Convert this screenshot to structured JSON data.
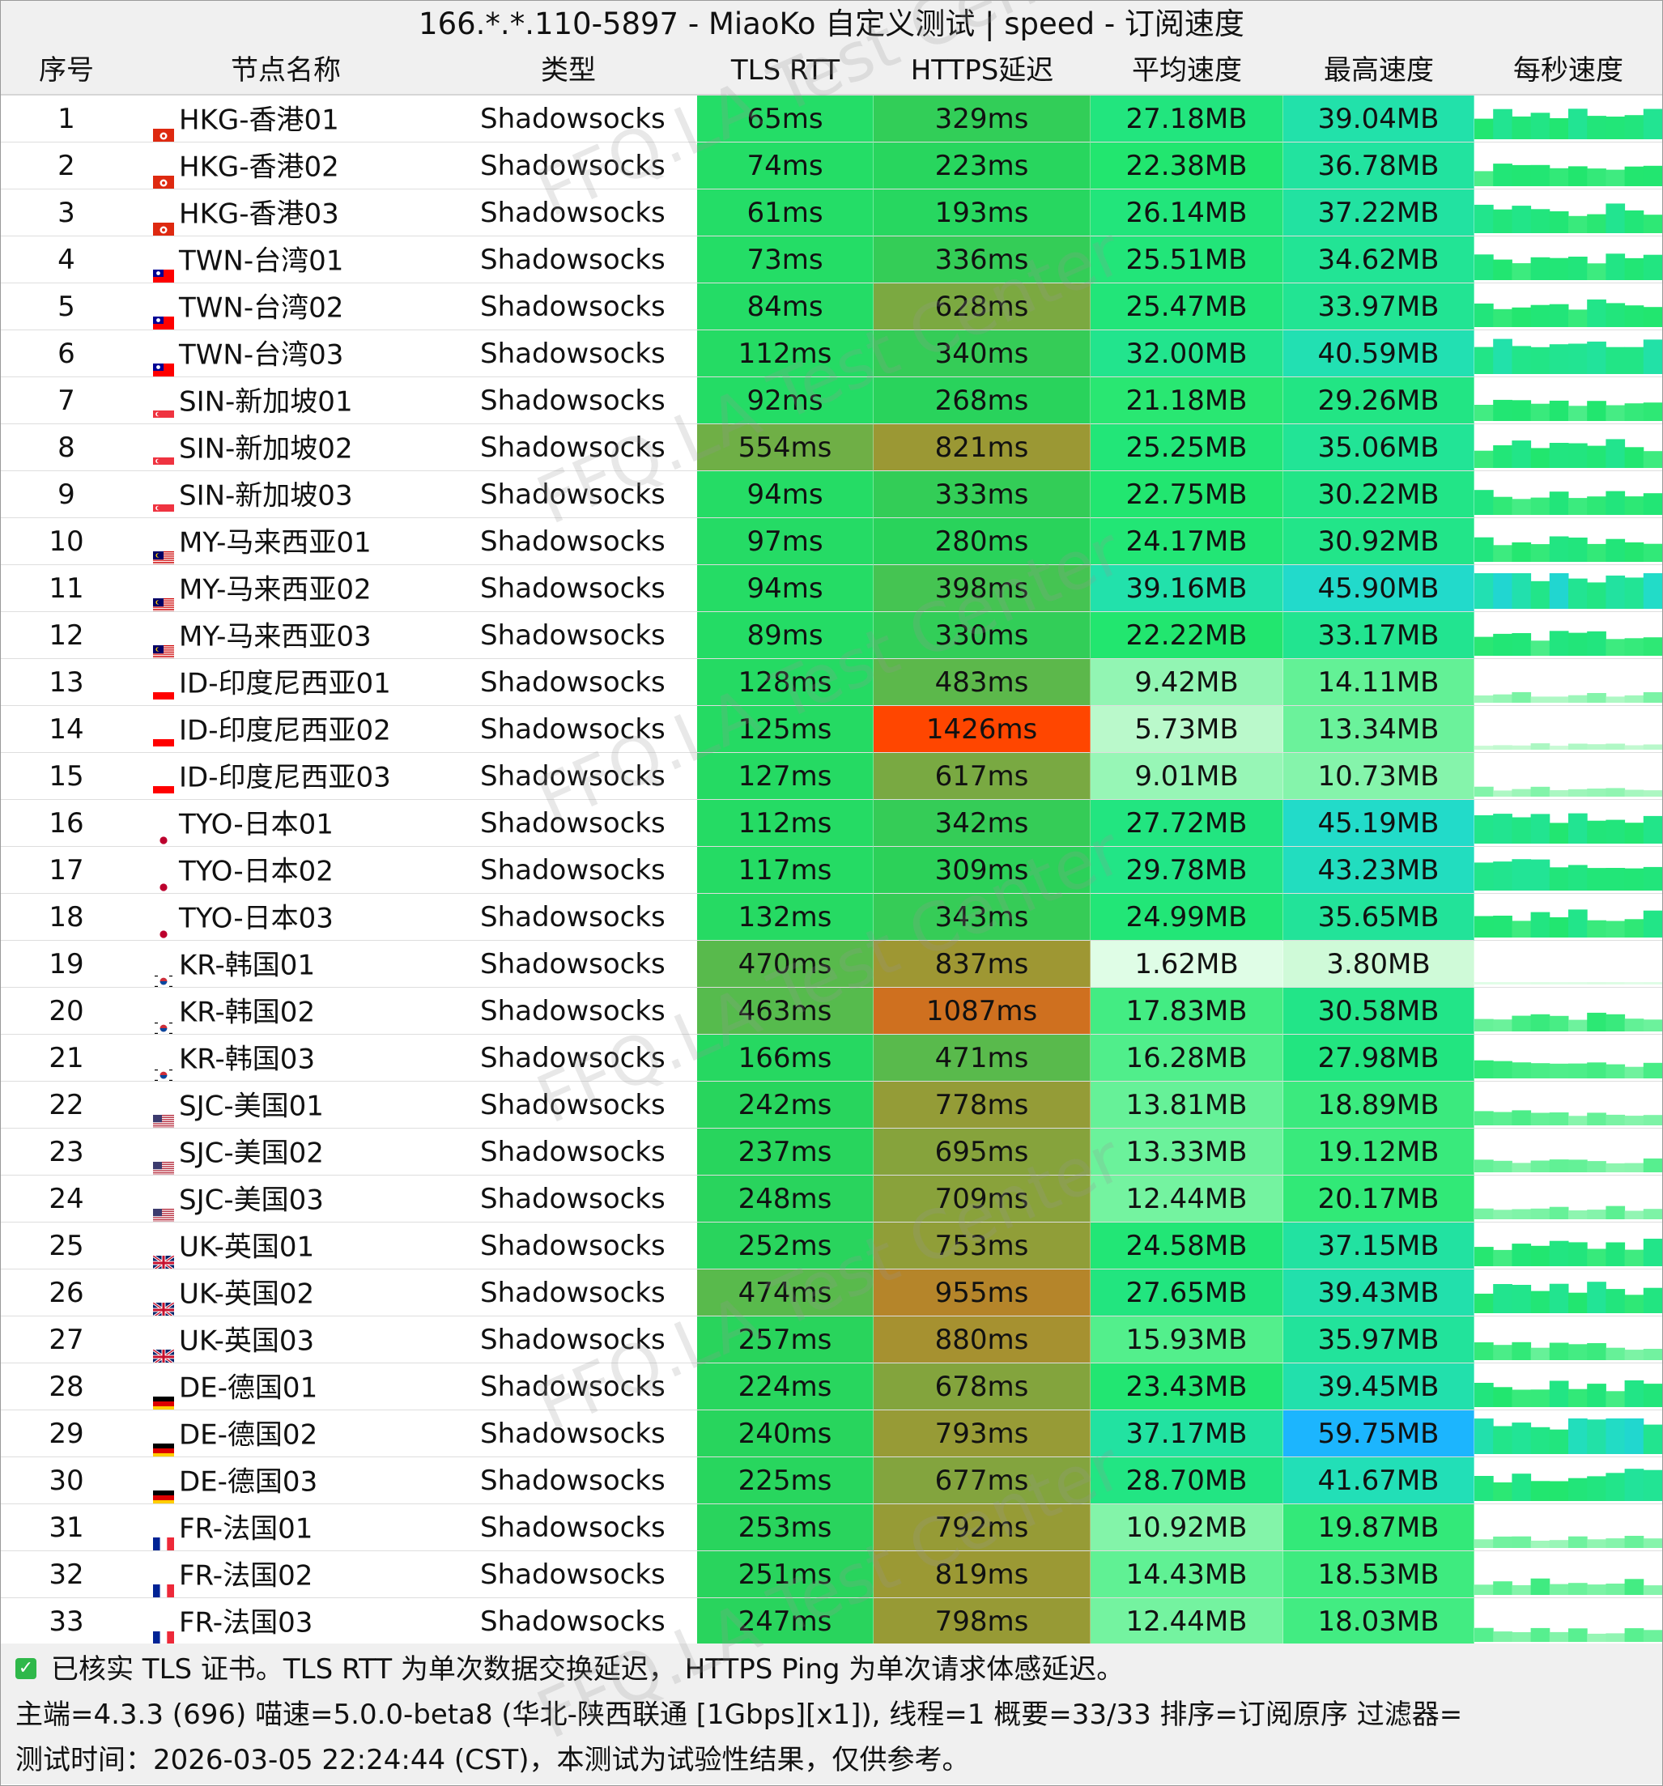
{
  "window": {
    "title": "166.*.*.110-5897 - MiaoKo 自定义测试 | speed - 订阅速度"
  },
  "columns": {
    "index": "序号",
    "name": "节点名称",
    "type": "类型",
    "tls_rtt": "TLS RTT",
    "https": "HTTPS延迟",
    "avg_speed": "平均速度",
    "max_speed": "最高速度",
    "per_second": "每秒速度"
  },
  "rows": [
    {
      "index": "1",
      "flag": "hk",
      "name": "HKG-香港01",
      "type": "Shadowsocks",
      "tls_rtt": "65ms",
      "https": "329ms",
      "avg": "27.18MB",
      "max": "39.04MB"
    },
    {
      "index": "2",
      "flag": "hk",
      "name": "HKG-香港02",
      "type": "Shadowsocks",
      "tls_rtt": "74ms",
      "https": "223ms",
      "avg": "22.38MB",
      "max": "36.78MB"
    },
    {
      "index": "3",
      "flag": "hk",
      "name": "HKG-香港03",
      "type": "Shadowsocks",
      "tls_rtt": "61ms",
      "https": "193ms",
      "avg": "26.14MB",
      "max": "37.22MB"
    },
    {
      "index": "4",
      "flag": "tw",
      "name": "TWN-台湾01",
      "type": "Shadowsocks",
      "tls_rtt": "73ms",
      "https": "336ms",
      "avg": "25.51MB",
      "max": "34.62MB"
    },
    {
      "index": "5",
      "flag": "tw",
      "name": "TWN-台湾02",
      "type": "Shadowsocks",
      "tls_rtt": "84ms",
      "https": "628ms",
      "avg": "25.47MB",
      "max": "33.97MB"
    },
    {
      "index": "6",
      "flag": "tw",
      "name": "TWN-台湾03",
      "type": "Shadowsocks",
      "tls_rtt": "112ms",
      "https": "340ms",
      "avg": "32.00MB",
      "max": "40.59MB"
    },
    {
      "index": "7",
      "flag": "sg",
      "name": "SIN-新加坡01",
      "type": "Shadowsocks",
      "tls_rtt": "92ms",
      "https": "268ms",
      "avg": "21.18MB",
      "max": "29.26MB"
    },
    {
      "index": "8",
      "flag": "sg",
      "name": "SIN-新加坡02",
      "type": "Shadowsocks",
      "tls_rtt": "554ms",
      "https": "821ms",
      "avg": "25.25MB",
      "max": "35.06MB"
    },
    {
      "index": "9",
      "flag": "sg",
      "name": "SIN-新加坡03",
      "type": "Shadowsocks",
      "tls_rtt": "94ms",
      "https": "333ms",
      "avg": "22.75MB",
      "max": "30.22MB"
    },
    {
      "index": "10",
      "flag": "my",
      "name": "MY-马来西亚01",
      "type": "Shadowsocks",
      "tls_rtt": "97ms",
      "https": "280ms",
      "avg": "24.17MB",
      "max": "30.92MB"
    },
    {
      "index": "11",
      "flag": "my",
      "name": "MY-马来西亚02",
      "type": "Shadowsocks",
      "tls_rtt": "94ms",
      "https": "398ms",
      "avg": "39.16MB",
      "max": "45.90MB"
    },
    {
      "index": "12",
      "flag": "my",
      "name": "MY-马来西亚03",
      "type": "Shadowsocks",
      "tls_rtt": "89ms",
      "https": "330ms",
      "avg": "22.22MB",
      "max": "33.17MB"
    },
    {
      "index": "13",
      "flag": "id",
      "name": "ID-印度尼西亚01",
      "type": "Shadowsocks",
      "tls_rtt": "128ms",
      "https": "483ms",
      "avg": "9.42MB",
      "max": "14.11MB"
    },
    {
      "index": "14",
      "flag": "id",
      "name": "ID-印度尼西亚02",
      "type": "Shadowsocks",
      "tls_rtt": "125ms",
      "https": "1426ms",
      "avg": "5.73MB",
      "max": "13.34MB"
    },
    {
      "index": "15",
      "flag": "id",
      "name": "ID-印度尼西亚03",
      "type": "Shadowsocks",
      "tls_rtt": "127ms",
      "https": "617ms",
      "avg": "9.01MB",
      "max": "10.73MB"
    },
    {
      "index": "16",
      "flag": "jp",
      "name": "TYO-日本01",
      "type": "Shadowsocks",
      "tls_rtt": "112ms",
      "https": "342ms",
      "avg": "27.72MB",
      "max": "45.19MB"
    },
    {
      "index": "17",
      "flag": "jp",
      "name": "TYO-日本02",
      "type": "Shadowsocks",
      "tls_rtt": "117ms",
      "https": "309ms",
      "avg": "29.78MB",
      "max": "43.23MB"
    },
    {
      "index": "18",
      "flag": "jp",
      "name": "TYO-日本03",
      "type": "Shadowsocks",
      "tls_rtt": "132ms",
      "https": "343ms",
      "avg": "24.99MB",
      "max": "35.65MB"
    },
    {
      "index": "19",
      "flag": "kr",
      "name": "KR-韩国01",
      "type": "Shadowsocks",
      "tls_rtt": "470ms",
      "https": "837ms",
      "avg": "1.62MB",
      "max": "3.80MB"
    },
    {
      "index": "20",
      "flag": "kr",
      "name": "KR-韩国02",
      "type": "Shadowsocks",
      "tls_rtt": "463ms",
      "https": "1087ms",
      "avg": "17.83MB",
      "max": "30.58MB"
    },
    {
      "index": "21",
      "flag": "kr",
      "name": "KR-韩国03",
      "type": "Shadowsocks",
      "tls_rtt": "166ms",
      "https": "471ms",
      "avg": "16.28MB",
      "max": "27.98MB"
    },
    {
      "index": "22",
      "flag": "us",
      "name": "SJC-美国01",
      "type": "Shadowsocks",
      "tls_rtt": "242ms",
      "https": "778ms",
      "avg": "13.81MB",
      "max": "18.89MB"
    },
    {
      "index": "23",
      "flag": "us",
      "name": "SJC-美国02",
      "type": "Shadowsocks",
      "tls_rtt": "237ms",
      "https": "695ms",
      "avg": "13.33MB",
      "max": "19.12MB"
    },
    {
      "index": "24",
      "flag": "us",
      "name": "SJC-美国03",
      "type": "Shadowsocks",
      "tls_rtt": "248ms",
      "https": "709ms",
      "avg": "12.44MB",
      "max": "20.17MB"
    },
    {
      "index": "25",
      "flag": "uk",
      "name": "UK-英国01",
      "type": "Shadowsocks",
      "tls_rtt": "252ms",
      "https": "753ms",
      "avg": "24.58MB",
      "max": "37.15MB"
    },
    {
      "index": "26",
      "flag": "uk",
      "name": "UK-英国02",
      "type": "Shadowsocks",
      "tls_rtt": "474ms",
      "https": "955ms",
      "avg": "27.65MB",
      "max": "39.43MB"
    },
    {
      "index": "27",
      "flag": "uk",
      "name": "UK-英国03",
      "type": "Shadowsocks",
      "tls_rtt": "257ms",
      "https": "880ms",
      "avg": "15.93MB",
      "max": "35.97MB"
    },
    {
      "index": "28",
      "flag": "de",
      "name": "DE-德国01",
      "type": "Shadowsocks",
      "tls_rtt": "224ms",
      "https": "678ms",
      "avg": "23.43MB",
      "max": "39.45MB"
    },
    {
      "index": "29",
      "flag": "de",
      "name": "DE-德国02",
      "type": "Shadowsocks",
      "tls_rtt": "240ms",
      "https": "793ms",
      "avg": "37.17MB",
      "max": "59.75MB"
    },
    {
      "index": "30",
      "flag": "de",
      "name": "DE-德国03",
      "type": "Shadowsocks",
      "tls_rtt": "225ms",
      "https": "677ms",
      "avg": "28.70MB",
      "max": "41.67MB"
    },
    {
      "index": "31",
      "flag": "fr",
      "name": "FR-法国01",
      "type": "Shadowsocks",
      "tls_rtt": "253ms",
      "https": "792ms",
      "avg": "10.92MB",
      "max": "19.87MB"
    },
    {
      "index": "32",
      "flag": "fr",
      "name": "FR-法国02",
      "type": "Shadowsocks",
      "tls_rtt": "251ms",
      "https": "819ms",
      "avg": "14.43MB",
      "max": "18.53MB"
    },
    {
      "index": "33",
      "flag": "fr",
      "name": "FR-法国03",
      "type": "Shadowsocks",
      "tls_rtt": "247ms",
      "https": "798ms",
      "avg": "12.44MB",
      "max": "18.03MB"
    }
  ],
  "footer": {
    "line1": "已核实 TLS 证书。TLS RTT 为单次数据交换延迟， HTTPS Ping 为单次请求体感延迟。",
    "line2": "主端=4.3.3 (696) 喵速=5.0.0-beta8 (华北-陕西联通 [1Gbps][x1]), 线程=1 概要=33/33 排序=订阅原序 过滤器=",
    "line3": "测试时间：2026-03-05 22:24:44 (CST)，本测试为试验性结果，仅供参考。"
  },
  "watermark": "FFQ.LA Test Center",
  "colors": {
    "header_bg": "#f0f0f0",
    "latency_good": "#22e06a",
    "latency_bad": "#ff4500",
    "speed_fast": "#1cb4ff",
    "check": "#2fb84a"
  }
}
